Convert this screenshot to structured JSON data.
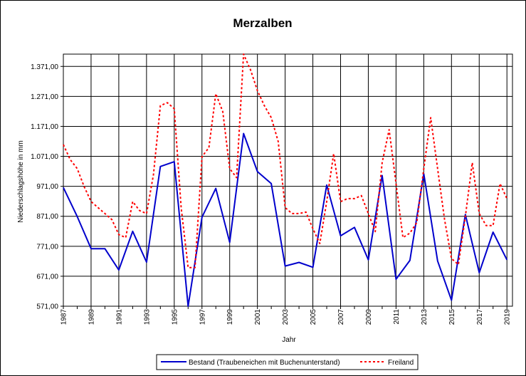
{
  "chart_data": {
    "type": "line",
    "title": "Merzalben",
    "xlabel": "Jahr",
    "ylabel": "Niederschlagshöhe in mm",
    "ylim": [
      571,
      1412
    ],
    "y_ticks": [
      "571,00",
      "671,00",
      "771,00",
      "871,00",
      "971,00",
      "1.071,00",
      "1.171,00",
      "1.271,00",
      "1.371,00"
    ],
    "x_tick_labels": [
      "1987",
      "1989",
      "1991",
      "1993",
      "1995",
      "1997",
      "1999",
      "2001",
      "2003",
      "2005",
      "2007",
      "2009",
      "2011",
      "2013",
      "2015",
      "2017",
      "2019"
    ],
    "grid": true,
    "legend_position": "bottom",
    "series": [
      {
        "name": "Bestand (Traubeneichen mit Buchenunterstand)",
        "color": "#0000cc",
        "style": "solid",
        "x": [
          1987,
          1988,
          1989,
          1990,
          1991,
          1992,
          1993,
          1994,
          1995,
          1996,
          1997,
          1998,
          1999,
          2000,
          2001,
          2002,
          2003,
          2004,
          2005,
          2006,
          2007,
          2008,
          2009,
          2010,
          2011,
          2012,
          2013,
          2014,
          2015,
          2016,
          2017,
          2018,
          2019
        ],
        "y": [
          967,
          870,
          763,
          763,
          692,
          821,
          718,
          1037,
          1053,
          571,
          868,
          964,
          784,
          1147,
          1020,
          980,
          705,
          717,
          701,
          975,
          806,
          834,
          726,
          1007,
          661,
          724,
          1013,
          722,
          591,
          877,
          683,
          818,
          726
        ]
      },
      {
        "name": "Freiland",
        "color": "#ff0000",
        "style": "dotted",
        "x": [
          1987,
          1987.5,
          1988,
          1988.5,
          1989,
          1989.5,
          1990,
          1990.5,
          1991,
          1991.5,
          1992,
          1992.5,
          1993,
          1993.5,
          1994,
          1994.5,
          1995,
          1995.5,
          1996,
          1996.5,
          1997,
          1997.5,
          1998,
          1998.5,
          1999,
          1999.5,
          2000,
          2000.5,
          2001,
          2001.5,
          2002,
          2002.5,
          2003,
          2003.5,
          2004,
          2004.5,
          2005,
          2005.5,
          2006,
          2006.5,
          2007,
          2007.5,
          2008,
          2008.5,
          2009,
          2009.5,
          2010,
          2010.5,
          2011,
          2011.5,
          2012,
          2012.5,
          2013,
          2013.5,
          2014,
          2014.5,
          2015,
          2015.5,
          2016,
          2016.5,
          2017,
          2017.5,
          2018,
          2018.5,
          2019
        ],
        "y": [
          1110,
          1060,
          1030,
          970,
          920,
          900,
          880,
          860,
          810,
          800,
          920,
          890,
          880,
          1010,
          1240,
          1250,
          1230,
          900,
          700,
          700,
          1070,
          1100,
          1280,
          1220,
          1030,
          1000,
          1412,
          1360,
          1290,
          1240,
          1200,
          1120,
          900,
          880,
          880,
          885,
          830,
          780,
          920,
          1080,
          920,
          930,
          930,
          940,
          880,
          820,
          1050,
          1160,
          980,
          800,
          815,
          850,
          1030,
          1200,
          1030,
          860,
          730,
          710,
          870,
          1050,
          880,
          840,
          840,
          980,
          930
        ]
      }
    ]
  }
}
